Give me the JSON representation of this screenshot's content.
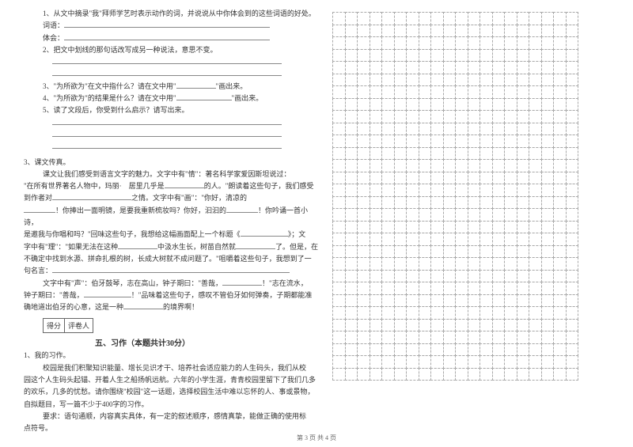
{
  "q1": {
    "text": "1、从文中摘录\"我\"拜师学艺时表示动作的词，并说说从中你体会到的这些词语的好处。",
    "label_words": "词语：",
    "label_feel": "体会："
  },
  "q2": {
    "text": "2、把文中划线的那句话改写成另一种说法，意思不变。"
  },
  "q3": {
    "text_a": "3、\"为所欲为\"在文中指什么？请在文中用\"",
    "text_b": "\"画出来。"
  },
  "q4": {
    "text_a": "4、\"为所欲为\"的结果是什么？请在文中用\"",
    "text_b": "\"画出来。"
  },
  "q5": {
    "text": "5、读了文段后，你受到什么启示？请写出来。"
  },
  "s3": {
    "title": "3、课文传真。",
    "p1a": "课文让我们感受到语言文字的魅力。文字中有\"情\"：著名科学家爱因斯坦说过：",
    "p1b": "\"在所有世界著名人物中，玛丽·　居里几乎是",
    "p1c": "的人。\"朗读着这些句子，我们感受",
    "p1d": "到作者对",
    "p1e": "之情。文字中有\"画\"：\"你好，清凉的",
    "p2a": "！你捧出一面明镜，是要我重新梳妆吗？你好，汩汩的",
    "p2b": "！你吟诵一首小诗，",
    "p2c": "是邀我与你唱和吗？\"回味这些句子，我想给这幅画面配上一个标题《",
    "p2d": "》；文",
    "p2e": "字中有\"理\"：\"如果无法在这种",
    "p2f": "中汲水生长，树苗自然就",
    "p2g": "了。但是，在",
    "p2h": "不确定中找到水源、拼命扎根的树，长成大树就不成问题了。\"咀嚼着这些句子，我想到了一",
    "p2i": "句名言：",
    "p3a": "文字中有\"声\"：伯牙鼓琴，志在高山，钟子期曰：\"善哉，",
    "p3b": "！\"志在流水，",
    "p3c": "钟子期曰：\"善哉，",
    "p3d": "！\"品味着这些句子，感叹不管伯牙如何弹奏，子期都能准",
    "p3e": "确地道出伯牙的心意，这是一种",
    "p3f": "的境界啊！"
  },
  "score": {
    "a": "得分",
    "b": "评卷人"
  },
  "section5": {
    "title": "五、习作（本题共计30分）",
    "item": "1、我的习作。",
    "p1": "校园是我们积聚知识能量、增长见识才干、培养社会适应能力的人生码头，我们从校",
    "p2": "园这个人生码头起锚、开着人生之船扬帆远航。六年的小学生涯，青青校园里留下了我们几多",
    "p3": "的欢乐，几多的忧愁。请你围绕\"校园\"这一话题，选择校园生活中难以忘怀的人、事或景物，",
    "p4": "自拟题目，写一篇不少于400字的习作。",
    "req": "要求：语句通顺，内容真实具体，有一定的叙述顺序，感情真挚，能做正确的使用标",
    "req2": "点符号。"
  },
  "footer": "第 3 页  共 4 页",
  "grid": {
    "rows": 30,
    "cols": 20
  }
}
